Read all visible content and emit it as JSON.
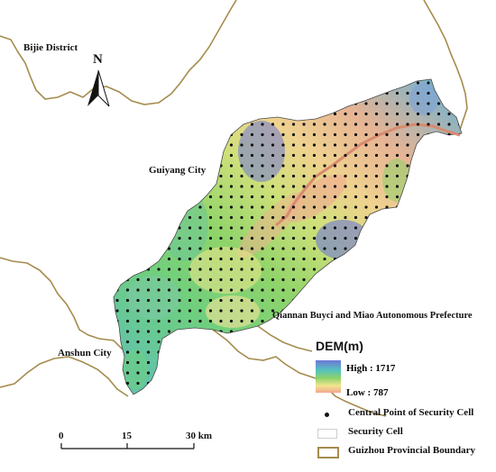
{
  "labels": {
    "bijie": "Bijie District",
    "guiyang": "Guiyang City",
    "qiannan": "Qiannan Buyci and Miao Autonomous Prefecture",
    "anshun": "Anshun City"
  },
  "north_arrow": {
    "letter": "N",
    "icon": "north-arrow-icon"
  },
  "legend": {
    "title": "DEM(m)",
    "high": "High : 1717",
    "low": "Low : 787",
    "points": "Central Point of Security Cell",
    "cell": "Security Cell",
    "boundary": "Guizhou Provincial Boundary"
  },
  "scale_bar": {
    "ticks": [
      "0",
      "15",
      "30 km"
    ]
  },
  "colors": {
    "boundary": "#a58c4e",
    "river": "#d98a6e",
    "dem_high": "#6d78d6",
    "dem_mid": "#8ed36a",
    "dem_low": "#f3a691",
    "points": "#111111"
  }
}
